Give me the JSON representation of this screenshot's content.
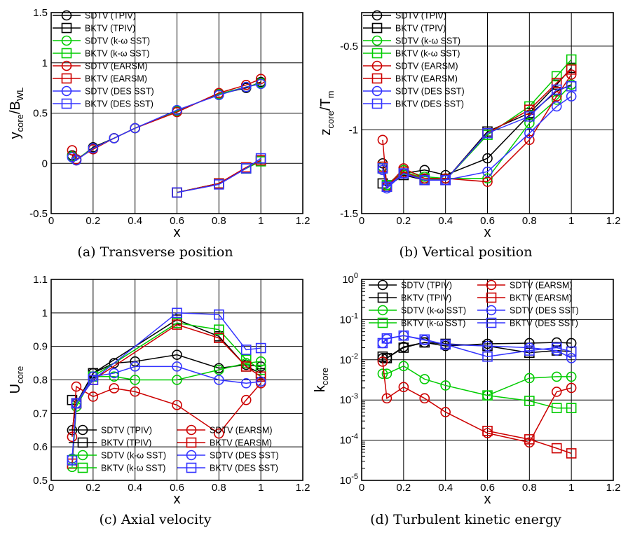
{
  "chart_data": [
    {
      "id": "a",
      "caption": "(a) Transverse position",
      "type": "line",
      "xlabel": "x",
      "ylabel": "y",
      "ylabel_sub": "core",
      "ylabel_tail": "/B",
      "ylabel_tail_sub": "WL",
      "xlim": [
        0,
        1.2
      ],
      "ylim": [
        -0.5,
        1.5
      ],
      "yscale": "linear",
      "xticks": [
        "0",
        "0.2",
        "0.4",
        "0.6",
        "0.8",
        "1",
        "1.2"
      ],
      "yticks": [
        "-0.5",
        "0",
        "0.5",
        "1",
        "1.5"
      ],
      "ytick_values": [
        -0.5,
        0,
        0.5,
        1,
        1.5
      ],
      "grid": true,
      "legend": {
        "position": "top-left",
        "columns": 1
      },
      "series": [
        {
          "name": "SDTV (TPIV)",
          "color": "#000000",
          "marker": "circle",
          "x": [
            0.1,
            0.12,
            0.2,
            0.3,
            0.4,
            0.6,
            0.8,
            0.93,
            1.0
          ],
          "y": [
            0.08,
            0.03,
            0.16,
            0.25,
            0.35,
            0.52,
            0.69,
            0.75,
            0.81
          ]
        },
        {
          "name": "BKTV (TPIV)",
          "color": "#000000",
          "marker": "square",
          "x": [
            0.6,
            0.8,
            0.93,
            1.0
          ],
          "y": [
            -0.29,
            -0.2,
            -0.05,
            0.03
          ]
        },
        {
          "name": "SDTV (k-ω SST)",
          "color": "#00cc00",
          "marker": "circle",
          "x": [
            0.1,
            0.12,
            0.2,
            0.3,
            0.4,
            0.6,
            0.8,
            0.93,
            1.0
          ],
          "y": [
            0.07,
            0.04,
            0.15,
            0.25,
            0.35,
            0.52,
            0.69,
            0.76,
            0.8
          ]
        },
        {
          "name": "BKTV (k-ω SST)",
          "color": "#00cc00",
          "marker": "square",
          "x": [
            0.6,
            0.8,
            0.93,
            1.0
          ],
          "y": [
            -0.29,
            -0.2,
            -0.05,
            0.02
          ]
        },
        {
          "name": "SDTV (EARSM)",
          "color": "#cc0000",
          "marker": "circle",
          "x": [
            0.1,
            0.12,
            0.2,
            0.3,
            0.4,
            0.6,
            0.8,
            0.93,
            1.0
          ],
          "y": [
            0.13,
            0.04,
            0.14,
            0.25,
            0.35,
            0.51,
            0.7,
            0.78,
            0.84
          ]
        },
        {
          "name": "BKTV (EARSM)",
          "color": "#cc0000",
          "marker": "square",
          "x": [
            0.6,
            0.8,
            0.93,
            1.0
          ],
          "y": [
            -0.29,
            -0.2,
            -0.04,
            0.03
          ]
        },
        {
          "name": "SDTV (DES SST)",
          "color": "#3333ff",
          "marker": "circle",
          "x": [
            0.1,
            0.12,
            0.2,
            0.3,
            0.4,
            0.6,
            0.8,
            0.93,
            1.0
          ],
          "y": [
            0.06,
            0.03,
            0.15,
            0.25,
            0.35,
            0.53,
            0.68,
            0.76,
            0.79
          ]
        },
        {
          "name": "BKTV (DES SST)",
          "color": "#3333ff",
          "marker": "square",
          "x": [
            0.6,
            0.8,
            0.93,
            1.0
          ],
          "y": [
            -0.29,
            -0.21,
            -0.05,
            0.05
          ]
        }
      ]
    },
    {
      "id": "b",
      "caption": "(b) Vertical position",
      "type": "line",
      "xlabel": "x",
      "ylabel": "z",
      "ylabel_sub": "core",
      "ylabel_tail": "/T",
      "ylabel_tail_sub": "m",
      "xlim": [
        0,
        1.2
      ],
      "ylim": [
        -1.5,
        -0.3
      ],
      "yscale": "linear",
      "xticks": [
        "0",
        "0.2",
        "0.4",
        "0.6",
        "0.8",
        "1",
        "1.2"
      ],
      "yticks": [
        "-1.5",
        "-1",
        "-0.5"
      ],
      "ytick_values": [
        -1.5,
        -1,
        -0.5
      ],
      "grid": true,
      "legend": {
        "position": "top-left",
        "columns": 1
      },
      "series": [
        {
          "name": "SDTV (TPIV)",
          "color": "#000000",
          "marker": "circle",
          "x": [
            0.1,
            0.12,
            0.2,
            0.3,
            0.4,
            0.6,
            0.8,
            0.93,
            1.0
          ],
          "y": [
            -1.2,
            -1.33,
            -1.26,
            -1.24,
            -1.27,
            -1.17,
            -0.91,
            -0.77,
            -0.73
          ]
        },
        {
          "name": "BKTV (TPIV)",
          "color": "#000000",
          "marker": "square",
          "x": [
            0.1,
            0.12,
            0.2,
            0.3,
            0.4,
            0.6,
            0.8,
            0.93,
            1.0
          ],
          "y": [
            -1.32,
            -1.34,
            -1.27,
            -1.3,
            -1.3,
            -1.01,
            -0.9,
            -0.73,
            -0.63
          ]
        },
        {
          "name": "SDTV (k-ω SST)",
          "color": "#00cc00",
          "marker": "circle",
          "x": [
            0.1,
            0.12,
            0.2,
            0.3,
            0.4,
            0.6,
            0.8,
            0.93,
            1.0
          ],
          "y": [
            -1.22,
            -1.33,
            -1.24,
            -1.28,
            -1.29,
            -1.29,
            -0.96,
            -0.82,
            -0.73
          ]
        },
        {
          "name": "BKTV (k-ω SST)",
          "color": "#00cc00",
          "marker": "square",
          "x": [
            0.1,
            0.12,
            0.2,
            0.3,
            0.4,
            0.6,
            0.8,
            0.93,
            1.0
          ],
          "y": [
            -1.23,
            -1.33,
            -1.25,
            -1.29,
            -1.3,
            -1.03,
            -0.86,
            -0.68,
            -0.58
          ]
        },
        {
          "name": "SDTV (EARSM)",
          "color": "#cc0000",
          "marker": "circle",
          "x": [
            0.1,
            0.12,
            0.2,
            0.3,
            0.4,
            0.6,
            0.8,
            0.93,
            1.0
          ],
          "y": [
            -1.06,
            -1.34,
            -1.23,
            -1.29,
            -1.29,
            -1.31,
            -1.06,
            -0.8,
            -0.67
          ]
        },
        {
          "name": "BKTV (EARSM)",
          "color": "#cc0000",
          "marker": "square",
          "x": [
            0.1,
            0.12,
            0.2,
            0.3,
            0.4,
            0.6,
            0.8,
            0.93,
            1.0
          ],
          "y": [
            -1.22,
            -1.34,
            -1.25,
            -1.3,
            -1.3,
            -1.02,
            -0.88,
            -0.72,
            -0.64
          ]
        },
        {
          "name": "SDTV (DES SST)",
          "color": "#3333ff",
          "marker": "circle",
          "x": [
            0.1,
            0.12,
            0.2,
            0.3,
            0.4,
            0.6,
            0.8,
            0.93,
            1.0
          ],
          "y": [
            -1.24,
            -1.35,
            -1.26,
            -1.3,
            -1.3,
            -1.25,
            -1.02,
            -0.86,
            -0.8
          ]
        },
        {
          "name": "BKTV (DES SST)",
          "color": "#3333ff",
          "marker": "square",
          "x": [
            0.1,
            0.12,
            0.2,
            0.3,
            0.4,
            0.6,
            0.8,
            0.93,
            1.0
          ],
          "y": [
            -1.23,
            -1.34,
            -1.26,
            -1.3,
            -1.3,
            -1.02,
            -0.92,
            -0.76,
            -0.74
          ]
        }
      ]
    },
    {
      "id": "c",
      "caption": "(c) Axial velocity",
      "type": "line",
      "xlabel": "x",
      "ylabel": "U",
      "ylabel_sub": "core",
      "ylabel_tail": "",
      "ylabel_tail_sub": "",
      "xlim": [
        0,
        1.2
      ],
      "ylim": [
        0.5,
        1.1
      ],
      "yscale": "linear",
      "xticks": [
        "0",
        "0.2",
        "0.4",
        "0.6",
        "0.8",
        "1",
        "1.2"
      ],
      "yticks": [
        "0.5",
        "0.6",
        "0.7",
        "0.8",
        "0.9",
        "1",
        "1.1"
      ],
      "ytick_values": [
        0.5,
        0.6,
        0.7,
        0.8,
        0.9,
        1.0,
        1.1
      ],
      "grid": true,
      "legend": {
        "position": "bottom",
        "columns": 2
      },
      "series": [
        {
          "name": "SDTV (TPIV)",
          "color": "#000000",
          "marker": "circle",
          "x": [
            0.1,
            0.12,
            0.2,
            0.3,
            0.4,
            0.6,
            0.8,
            0.93,
            1.0
          ],
          "y": [
            0.65,
            0.73,
            0.82,
            0.85,
            0.855,
            0.875,
            0.835,
            0.845,
            0.84
          ]
        },
        {
          "name": "BKTV (TPIV)",
          "color": "#000000",
          "marker": "square",
          "x": [
            0.1,
            0.12,
            0.2,
            0.6,
            0.8,
            0.93,
            1.0
          ],
          "y": [
            0.74,
            0.73,
            0.82,
            0.98,
            0.93,
            0.84,
            0.82
          ]
        },
        {
          "name": "SDTV (k-ω SST)",
          "color": "#00cc00",
          "marker": "circle",
          "x": [
            0.1,
            0.12,
            0.2,
            0.3,
            0.4,
            0.6,
            0.8,
            0.93,
            1.0
          ],
          "y": [
            0.54,
            0.72,
            0.81,
            0.81,
            0.8,
            0.8,
            0.83,
            0.85,
            0.855
          ]
        },
        {
          "name": "BKTV (k-ω SST)",
          "color": "#00cc00",
          "marker": "square",
          "x": [
            0.1,
            0.12,
            0.2,
            0.6,
            0.8,
            0.93,
            1.0
          ],
          "y": [
            0.56,
            0.73,
            0.81,
            0.97,
            0.95,
            0.86,
            0.83
          ]
        },
        {
          "name": "SDTV (EARSM)",
          "color": "#cc0000",
          "marker": "circle",
          "x": [
            0.1,
            0.12,
            0.2,
            0.3,
            0.4,
            0.6,
            0.8,
            0.93,
            1.0
          ],
          "y": [
            0.63,
            0.78,
            0.75,
            0.775,
            0.765,
            0.725,
            0.64,
            0.74,
            0.79
          ]
        },
        {
          "name": "BKTV (EARSM)",
          "color": "#cc0000",
          "marker": "square",
          "x": [
            0.1,
            0.12,
            0.2,
            0.6,
            0.8,
            0.93,
            1.0
          ],
          "y": [
            0.55,
            0.73,
            0.8,
            0.965,
            0.925,
            0.84,
            0.81
          ]
        },
        {
          "name": "SDTV (DES SST)",
          "color": "#3333ff",
          "marker": "circle",
          "x": [
            0.1,
            0.12,
            0.2,
            0.3,
            0.4,
            0.6,
            0.8,
            0.93,
            1.0
          ],
          "y": [
            0.565,
            0.73,
            0.81,
            0.82,
            0.84,
            0.84,
            0.8,
            0.79,
            0.795
          ]
        },
        {
          "name": "BKTV (DES SST)",
          "color": "#3333ff",
          "marker": "square",
          "x": [
            0.1,
            0.12,
            0.2,
            0.6,
            0.8,
            0.93,
            1.0
          ],
          "y": [
            0.56,
            0.73,
            0.8,
            1.0,
            0.995,
            0.89,
            0.895
          ]
        }
      ]
    },
    {
      "id": "d",
      "caption": "(d) Turbulent kinetic energy",
      "type": "line",
      "xlabel": "x",
      "ylabel": "k",
      "ylabel_sub": "core",
      "ylabel_tail": "",
      "ylabel_tail_sub": "",
      "xlim": [
        0,
        1.2
      ],
      "ylim": [
        1e-05,
        1
      ],
      "yscale": "log",
      "xticks": [
        "0",
        "0.2",
        "0.4",
        "0.6",
        "0.8",
        "1",
        "1.2"
      ],
      "yticks": [
        "10-5",
        "10-4",
        "10-3",
        "10-2",
        "10-1",
        "100"
      ],
      "ytick_values": [
        1e-05,
        0.0001,
        0.001,
        0.01,
        0.1,
        1
      ],
      "ytick_base": "10",
      "ytick_exps": [
        "-5",
        "-4",
        "-3",
        "-2",
        "-1",
        "0"
      ],
      "grid": true,
      "legend": {
        "position": "top",
        "columns": 2
      },
      "series": [
        {
          "name": "SDTV (TPIV)",
          "color": "#000000",
          "marker": "circle",
          "x": [
            0.1,
            0.12,
            0.2,
            0.3,
            0.4,
            0.6,
            0.8,
            0.93,
            1.0
          ],
          "y": [
            0.011,
            0.011,
            0.021,
            0.027,
            0.022,
            0.025,
            0.026,
            0.027,
            0.026
          ]
        },
        {
          "name": "BKTV (TPIV)",
          "color": "#000000",
          "marker": "square",
          "x": [
            0.1,
            0.12,
            0.2,
            0.3,
            0.4,
            0.6,
            0.8,
            0.93,
            1.0
          ],
          "y": [
            0.012,
            0.011,
            0.02,
            0.027,
            0.025,
            0.022,
            0.015,
            0.017,
            0.016
          ]
        },
        {
          "name": "SDTV (k-ω SST)",
          "color": "#00cc00",
          "marker": "circle",
          "x": [
            0.1,
            0.12,
            0.2,
            0.3,
            0.4,
            0.6,
            0.8,
            0.93,
            1.0
          ],
          "y": [
            0.0045,
            0.0045,
            0.007,
            0.0033,
            0.0023,
            0.0013,
            0.0035,
            0.0038,
            0.0038
          ]
        },
        {
          "name": "BKTV (k-ω SST)",
          "color": "#00cc00",
          "marker": "square",
          "x": [
            0.6,
            0.8,
            0.93,
            1.0
          ],
          "y": [
            0.0013,
            0.00095,
            0.00063,
            0.00063
          ]
        },
        {
          "name": "SDTV (EARSM)",
          "color": "#cc0000",
          "marker": "circle",
          "x": [
            0.1,
            0.12,
            0.2,
            0.3,
            0.4,
            0.6,
            0.8,
            0.93,
            1.0
          ],
          "y": [
            0.009,
            0.0011,
            0.0021,
            0.0011,
            0.0005,
            0.00015,
            8.8e-05,
            0.0016,
            0.002
          ]
        },
        {
          "name": "BKTV (EARSM)",
          "color": "#cc0000",
          "marker": "square",
          "x": [
            0.6,
            0.8,
            0.93,
            1.0
          ],
          "y": [
            0.00017,
            0.000105,
            6.3e-05,
            4.7e-05
          ]
        },
        {
          "name": "SDTV (DES SST)",
          "color": "#3333ff",
          "marker": "circle",
          "x": [
            0.1,
            0.12,
            0.2,
            0.3,
            0.4,
            0.6,
            0.8,
            0.93,
            1.0
          ],
          "y": [
            0.026,
            0.033,
            0.04,
            0.031,
            0.024,
            0.022,
            0.02,
            0.017,
            0.011
          ]
        },
        {
          "name": "BKTV (DES SST)",
          "color": "#3333ff",
          "marker": "square",
          "x": [
            0.1,
            0.12,
            0.2,
            0.3,
            0.4,
            0.6,
            0.8,
            0.93,
            1.0
          ],
          "y": [
            0.026,
            0.034,
            0.04,
            0.032,
            0.024,
            0.012,
            0.017,
            0.02,
            0.016
          ]
        }
      ]
    }
  ]
}
